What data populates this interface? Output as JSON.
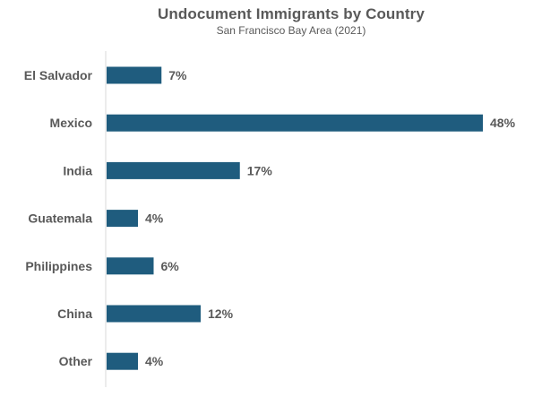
{
  "chart_data": {
    "type": "bar",
    "orientation": "horizontal",
    "title": "Undocument Immigrants by Country",
    "subtitle": "San Francisco Bay Area (2021)",
    "categories": [
      "El Salvador",
      "Mexico",
      "India",
      "Guatemala",
      "Philippines",
      "China",
      "Other"
    ],
    "values": [
      7,
      48,
      17,
      4,
      6,
      12,
      4
    ],
    "value_labels": [
      "7%",
      "48%",
      "17%",
      "4%",
      "6%",
      "12%",
      "4%"
    ],
    "xlabel": "",
    "ylabel": "",
    "xlim": [
      0,
      50
    ],
    "grid": false,
    "legend": "none",
    "bar_color": "#1F5C7E",
    "text_color": "#595959",
    "axis_color": "#D9D9D9"
  }
}
